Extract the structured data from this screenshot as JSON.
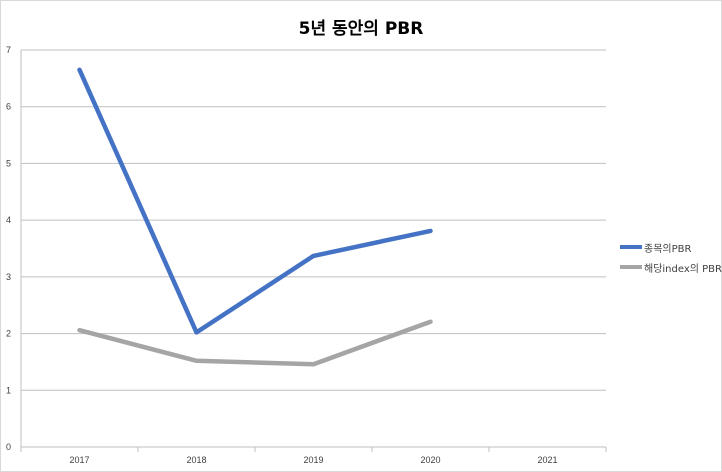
{
  "chart_data": {
    "type": "line",
    "title": "5년 동안의 PBR",
    "categories": [
      "2017",
      "2018",
      "2019",
      "2020",
      "2021"
    ],
    "ylim": [
      0,
      7
    ],
    "yticks": [
      "0",
      "1",
      "2",
      "3",
      "4",
      "5",
      "6",
      "7"
    ],
    "grid": true,
    "legend_position": "right",
    "series": [
      {
        "name": "종목의PBR",
        "color": "#4472c4",
        "values": [
          6.65,
          2.02,
          3.37,
          3.81,
          null
        ]
      },
      {
        "name": "해당index의 PBR",
        "color": "#a5a5a5",
        "values": [
          2.06,
          1.52,
          1.46,
          2.21,
          null
        ]
      }
    ]
  }
}
